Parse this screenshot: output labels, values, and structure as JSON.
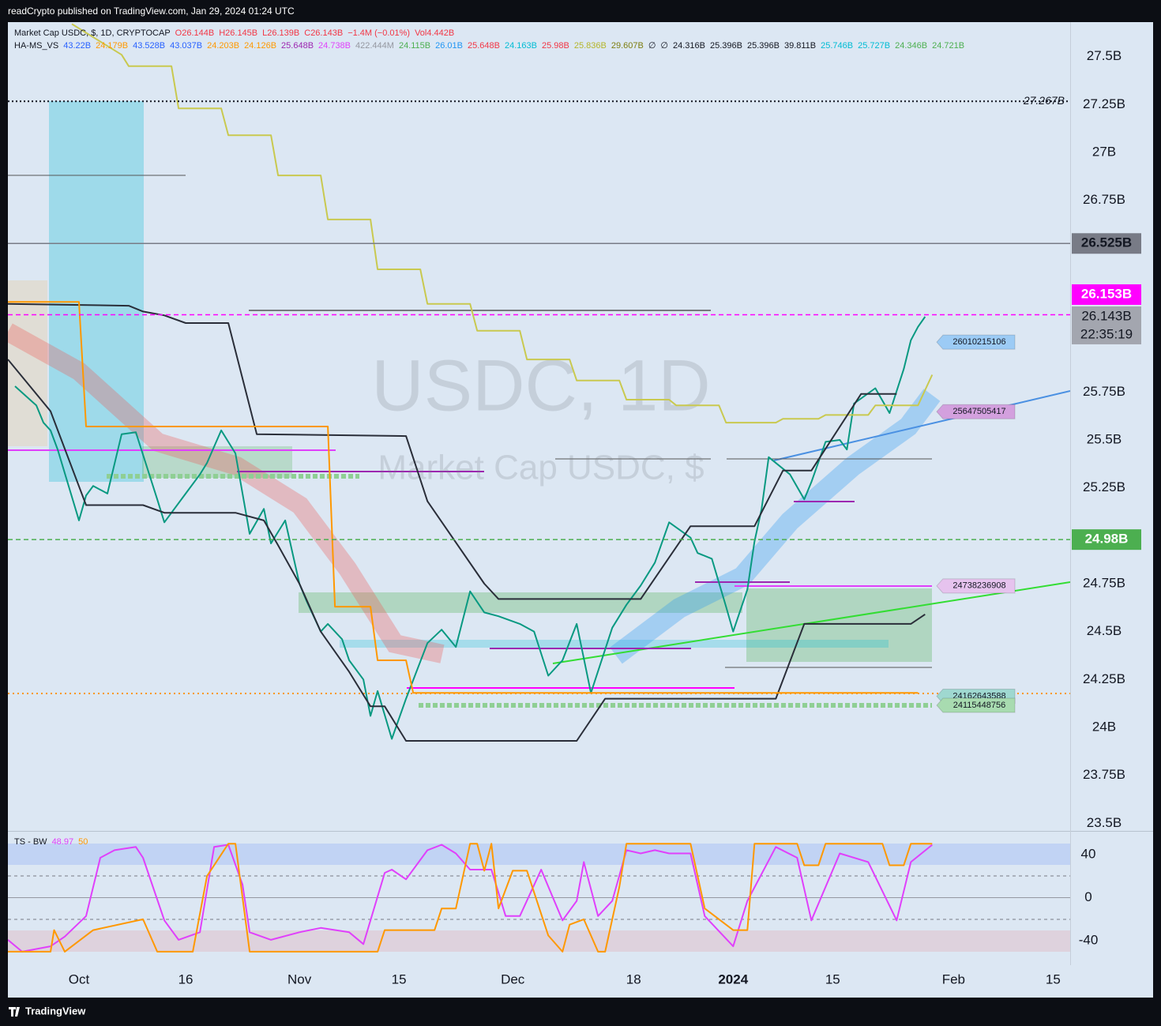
{
  "header": {
    "publisher": "readCrypto published on TradingView.com, Jan 29, 2024 01:24 UTC",
    "footer": "TradingView"
  },
  "chart_data": [
    {
      "type": "line",
      "title": "Market Cap USDC, $, 1D, CRYPTOCAP",
      "ohlc_items": [
        {
          "text": "O26.144B",
          "color": "#f23645"
        },
        {
          "text": "H26.145B",
          "color": "#f23645"
        },
        {
          "text": "L26.139B",
          "color": "#f23645"
        },
        {
          "text": "C26.143B",
          "color": "#f23645"
        },
        {
          "text": "−1.4M (−0.01%)",
          "color": "#f23645"
        },
        {
          "text": "Vol4.442B",
          "color": "#f23645"
        }
      ],
      "indicator_name": "HA-MS_VS",
      "indicator_items": [
        {
          "text": "43.22B",
          "color": "#2962ff"
        },
        {
          "text": "24.179B",
          "color": "#ff9800"
        },
        {
          "text": "43.528B",
          "color": "#2962ff"
        },
        {
          "text": "43.037B",
          "color": "#2962ff"
        },
        {
          "text": "24.203B",
          "color": "#ff9800"
        },
        {
          "text": "24.126B",
          "color": "#ff9800"
        },
        {
          "text": "25.648B",
          "color": "#9c27b0"
        },
        {
          "text": "24.738B",
          "color": "#e040fb"
        },
        {
          "text": "422.444M",
          "color": "#9598a1"
        },
        {
          "text": "24.115B",
          "color": "#4caf50"
        },
        {
          "text": "26.01B",
          "color": "#2196f3"
        },
        {
          "text": "25.648B",
          "color": "#f23645"
        },
        {
          "text": "24.163B",
          "color": "#00bcd4"
        },
        {
          "text": "25.98B",
          "color": "#f23645"
        },
        {
          "text": "25.836B",
          "color": "#b5b52a"
        },
        {
          "text": "29.607B",
          "color": "#7d7d10"
        },
        {
          "text": "∅",
          "color": "#131722"
        },
        {
          "text": "∅",
          "color": "#131722"
        },
        {
          "text": "24.316B",
          "color": "#131722"
        },
        {
          "text": "25.396B",
          "color": "#131722"
        },
        {
          "text": "25.396B",
          "color": "#131722"
        },
        {
          "text": "39.811B",
          "color": "#131722"
        },
        {
          "text": "25.746B",
          "color": "#00bcd4"
        },
        {
          "text": "25.727B",
          "color": "#00bcd4"
        },
        {
          "text": "24.346B",
          "color": "#4caf50"
        },
        {
          "text": "24.721B",
          "color": "#4caf50"
        }
      ],
      "watermark": "USDC, 1D",
      "watermark_subtitle": "Market Cap USDC, $",
      "xlim": [
        -10,
        139.4
      ],
      "xticks": [
        {
          "value": 0,
          "label": "Oct"
        },
        {
          "value": 15,
          "label": "16"
        },
        {
          "value": 31,
          "label": "Nov"
        },
        {
          "value": 45,
          "label": "15"
        },
        {
          "value": 61,
          "label": "Dec"
        },
        {
          "value": 78,
          "label": "18"
        },
        {
          "value": 92,
          "label": "2024"
        },
        {
          "value": 106,
          "label": "15"
        },
        {
          "value": 123,
          "label": "Feb"
        },
        {
          "value": 137,
          "label": "15"
        }
      ],
      "ylim": [
        23.46,
        27.68
      ],
      "yticks": [
        {
          "value": 27.5,
          "label": "27.5B"
        },
        {
          "value": 27.25,
          "label": "27.25B"
        },
        {
          "value": 27,
          "label": "27B"
        },
        {
          "value": 26.75,
          "label": "26.75B"
        },
        {
          "value": 25.75,
          "label": "25.75B"
        },
        {
          "value": 25.5,
          "label": "25.5B"
        },
        {
          "value": 25.25,
          "label": "25.25B"
        },
        {
          "value": 24.75,
          "label": "24.75B"
        },
        {
          "value": 24.5,
          "label": "24.5B"
        },
        {
          "value": 24.25,
          "label": "24.25B"
        },
        {
          "value": 24,
          "label": "24B"
        },
        {
          "value": 23.75,
          "label": "23.75B"
        },
        {
          "value": 23.5,
          "label": "23.5B"
        }
      ],
      "series": [
        {
          "color": "#089981",
          "x": [
            -9,
            -6,
            -5,
            -4,
            -3,
            0,
            1,
            2,
            4,
            6,
            8,
            11,
            12,
            15,
            17,
            18,
            20,
            22,
            24,
            26,
            27,
            29,
            31,
            32,
            34,
            35,
            37,
            38,
            40,
            41,
            42,
            44,
            46,
            49,
            51,
            53,
            55,
            57,
            59,
            62,
            64,
            66,
            68,
            70,
            72,
            75,
            77,
            79,
            81,
            83,
            86,
            87,
            89,
            91,
            92,
            94,
            95,
            96,
            97,
            100,
            102,
            103,
            105,
            107,
            108,
            109,
            112,
            114,
            116,
            117,
            118,
            119
          ],
          "values": [
            25.78,
            25.68,
            25.59,
            25.55,
            25.45,
            25.08,
            25.21,
            25.26,
            25.22,
            25.53,
            25.54,
            25.19,
            25.07,
            25.22,
            25.32,
            25.38,
            25.55,
            25.43,
            25.01,
            25.14,
            24.96,
            25.08,
            24.75,
            24.66,
            24.5,
            24.54,
            24.46,
            24.35,
            24.25,
            24.06,
            24.19,
            23.94,
            24.15,
            24.44,
            24.51,
            24.42,
            24.71,
            24.6,
            24.58,
            24.54,
            24.5,
            24.27,
            24.35,
            24.54,
            24.18,
            24.52,
            24.64,
            24.74,
            24.86,
            25.07,
            24.99,
            24.91,
            24.88,
            24.63,
            24.5,
            24.72,
            24.97,
            25.14,
            25.41,
            25.32,
            25.19,
            25.28,
            25.49,
            25.5,
            25.45,
            25.69,
            25.77,
            25.64,
            25.87,
            26.02,
            26.09,
            26.143
          ]
        },
        {
          "color": "#c9c94f",
          "x": [
            -1,
            6,
            7,
            13,
            14,
            20,
            21,
            27,
            28,
            34,
            35,
            41,
            42,
            48,
            49,
            55,
            56,
            62,
            63,
            69,
            70,
            76,
            77,
            83,
            84,
            90,
            91,
            98,
            99,
            104,
            105,
            111,
            112,
            118,
            120
          ],
          "values": [
            27.67,
            27.51,
            27.45,
            27.45,
            27.23,
            27.23,
            27.09,
            27.09,
            26.88,
            26.88,
            26.65,
            26.65,
            26.39,
            26.39,
            26.21,
            26.21,
            26.07,
            26.07,
            25.92,
            25.92,
            25.81,
            25.81,
            25.71,
            25.71,
            25.68,
            25.68,
            25.59,
            25.59,
            25.61,
            25.61,
            25.63,
            25.63,
            25.68,
            25.68,
            25.84
          ]
        },
        {
          "color": "#2a2e39",
          "x": [
            -10,
            7,
            9,
            12,
            15,
            21,
            25,
            46,
            49,
            57,
            59,
            79,
            86,
            95,
            99,
            103,
            110,
            115
          ],
          "values": [
            26.21,
            26.2,
            26.17,
            26.15,
            26.11,
            26.11,
            25.53,
            25.52,
            25.18,
            24.75,
            24.67,
            24.67,
            25.05,
            25.05,
            25.34,
            25.34,
            25.74,
            25.74
          ]
        },
        {
          "color": "#2a2e39",
          "x": [
            -10,
            -4,
            1,
            9,
            12,
            22,
            26,
            28,
            31,
            34,
            38,
            41,
            43,
            46,
            70,
            74,
            98,
            102,
            117,
            119
          ],
          "values": [
            25.92,
            25.65,
            25.16,
            25.16,
            25.12,
            25.12,
            25.08,
            24.95,
            24.75,
            24.5,
            24.29,
            24.11,
            24.11,
            23.93,
            23.93,
            24.15,
            24.15,
            24.54,
            24.54,
            24.59
          ]
        },
        {
          "color": "#ff9800",
          "x": [
            -10,
            0,
            1,
            35,
            36,
            41,
            42,
            46,
            47,
            118
          ],
          "values": [
            26.22,
            26.22,
            25.57,
            25.57,
            24.63,
            24.63,
            24.35,
            24.35,
            24.18,
            24.18
          ]
        }
      ],
      "price_lines": [
        {
          "value": 27.267,
          "label": "27.267B",
          "color": "#131722",
          "style": "dotted"
        },
        {
          "value": 26.525,
          "label": "26.525B",
          "color": "#787b86",
          "style": "solid"
        },
        {
          "value": 26.153,
          "label": "26.153B",
          "color": "#ff00ff",
          "style": "dashed"
        },
        {
          "value": 24.98,
          "label": "24.98B",
          "color": "#4caf50",
          "style": "dashed"
        }
      ],
      "last_price": {
        "value": 26.143,
        "label": "26.143B",
        "countdown": "22:35:19",
        "color": "#a3a6af"
      },
      "annotations": [
        {
          "value": 26.010215106,
          "label": "26010215106",
          "color": "#9ccbf5"
        },
        {
          "value": 25.647505417,
          "label": "25647505417",
          "color": "#d3a0de"
        },
        {
          "value": 24.738236908,
          "label": "24738236908",
          "color": "#e6c3ee"
        },
        {
          "value": 24.162643588,
          "label": "24162643588",
          "color": "#9fd8d0"
        },
        {
          "value": 24.115448756,
          "label": "24115448756",
          "color": "#a8dbb0"
        }
      ]
    },
    {
      "type": "line",
      "title": "TS - BW",
      "ylim": [
        -62.5,
        61.1
      ],
      "yticks": [
        40,
        0,
        -40
      ],
      "series": [
        {
          "color": "#e040fb",
          "x": [
            -10,
            -8,
            -4,
            -2,
            1,
            3,
            5,
            8,
            9,
            12,
            14,
            17,
            19,
            21,
            23,
            24,
            27,
            31,
            34,
            38,
            40,
            43,
            44,
            46,
            49,
            51,
            53,
            55,
            58,
            60,
            62,
            65,
            68,
            70,
            71,
            73,
            75,
            77,
            79,
            81,
            83,
            86,
            88,
            92,
            94,
            98,
            101,
            103,
            107,
            111,
            115,
            117,
            120
          ],
          "values": [
            -39,
            -50,
            -45,
            -36,
            -17,
            37,
            44,
            47,
            37,
            -21,
            -39,
            -32,
            47,
            49,
            12,
            -32,
            -39,
            -32,
            -28,
            -32,
            -43,
            23,
            26,
            17,
            44,
            49,
            41,
            26,
            26,
            -17,
            -17,
            26,
            -21,
            -3,
            33,
            -17,
            -3,
            44,
            41,
            44,
            41,
            41,
            -17,
            -45,
            -3,
            47,
            37,
            -21,
            41,
            33,
            -21,
            33,
            48.97
          ]
        },
        {
          "color": "#ff9800",
          "x": [
            -10,
            -4,
            -3.5,
            -2,
            2,
            9,
            11,
            16,
            18,
            21,
            22,
            24,
            42,
            43,
            50,
            51,
            53,
            55,
            56,
            57,
            58,
            59,
            61,
            63,
            66,
            68,
            69,
            71,
            73,
            74,
            76,
            77,
            86,
            88,
            92,
            94,
            95,
            101,
            102,
            104,
            105,
            113,
            114,
            116,
            117,
            120
          ],
          "values": [
            -50,
            -50,
            -30,
            -50,
            -30,
            -20,
            -50,
            -50,
            20,
            50,
            50,
            -50,
            -50,
            -30,
            -30,
            -10,
            -10,
            50,
            50,
            25,
            50,
            -10,
            25,
            25,
            -35,
            -50,
            -25,
            -20,
            -50,
            -50,
            10,
            50,
            50,
            -10,
            -30,
            -30,
            50,
            50,
            30,
            30,
            50,
            50,
            30,
            30,
            50,
            50
          ]
        }
      ]
    }
  ]
}
